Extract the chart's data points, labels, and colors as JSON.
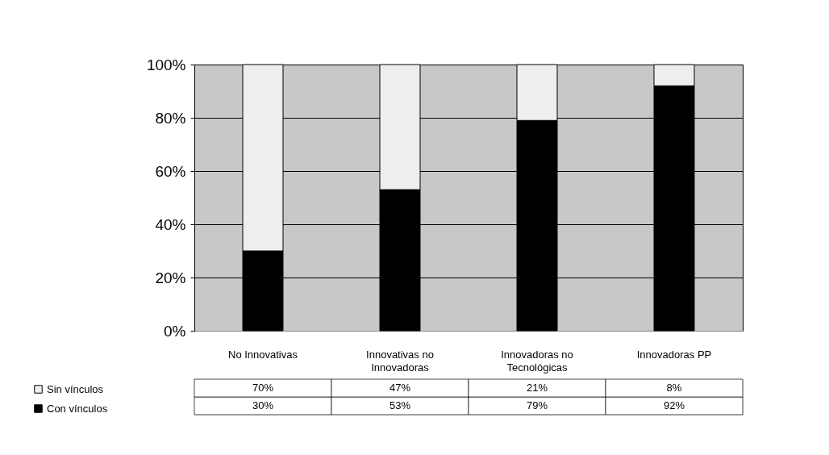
{
  "chart_data": {
    "type": "bar",
    "stacked": true,
    "categories": [
      "No Innovativas",
      "Innovativas no Innovadoras",
      "Innovadoras no Tecnológicas",
      "Innovadoras PP"
    ],
    "series": [
      {
        "name": "Con vínculos",
        "color": "#000000",
        "values": [
          30,
          53,
          79,
          92
        ],
        "value_labels": [
          "30%",
          "53%",
          "79%",
          "92%"
        ]
      },
      {
        "name": "Sin vínculos",
        "color": "#eeeeee",
        "values": [
          70,
          47,
          21,
          8
        ],
        "value_labels": [
          "70%",
          "47%",
          "21%",
          "8%"
        ]
      }
    ],
    "ylim": [
      0,
      100
    ],
    "yticks": [
      {
        "value": 0,
        "label": "0%"
      },
      {
        "value": 20,
        "label": "20%"
      },
      {
        "value": 40,
        "label": "40%"
      },
      {
        "value": 60,
        "label": "60%"
      },
      {
        "value": 80,
        "label": "80%"
      },
      {
        "value": 100,
        "label": "100%"
      }
    ],
    "grid": "y",
    "legend": "bottom left"
  }
}
